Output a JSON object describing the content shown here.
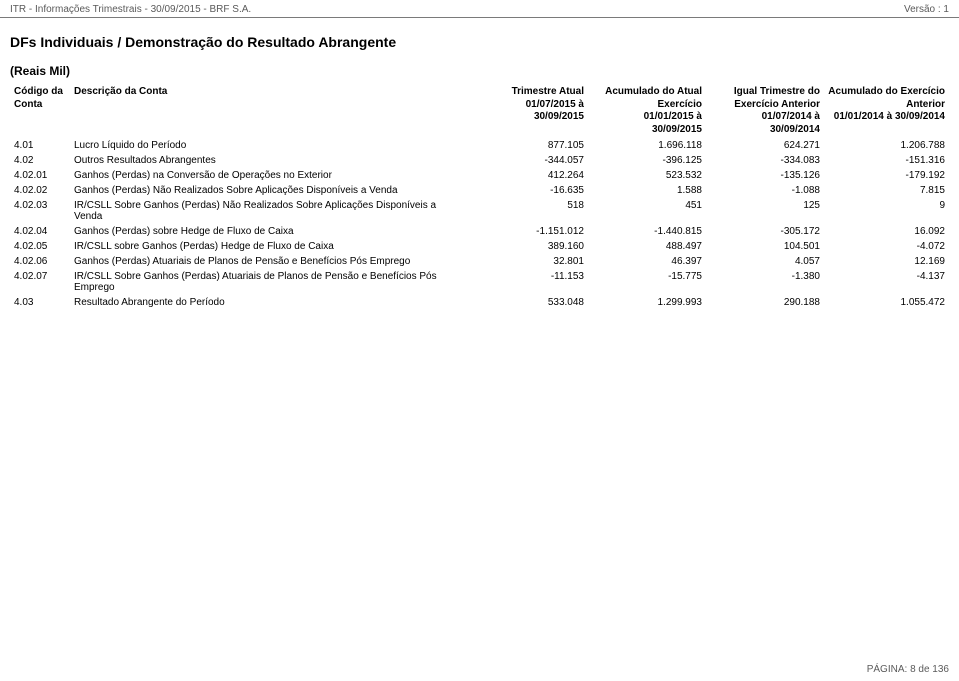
{
  "header": {
    "left": "ITR - Informações Trimestrais - 30/09/2015 - BRF S.A.",
    "right": "Versão : 1"
  },
  "title": "DFs Individuais / Demonstração do Resultado Abrangente",
  "subtitle": "(Reais Mil)",
  "columns": {
    "code": {
      "l1": "Código da",
      "l2": "Conta"
    },
    "desc": {
      "l1": "Descrição da Conta"
    },
    "c1": {
      "l1": "Trimestre Atual",
      "l2": "01/07/2015 à 30/09/2015"
    },
    "c2": {
      "l1": "Acumulado do Atual",
      "l2": "Exercício",
      "l3": "01/01/2015 à 30/09/2015"
    },
    "c3": {
      "l1": "Igual Trimestre do",
      "l2": "Exercício Anterior",
      "l3": "01/07/2014 à 30/09/2014"
    },
    "c4": {
      "l1": "Acumulado do Exercício",
      "l2": "Anterior",
      "l3": "01/01/2014 à 30/09/2014"
    }
  },
  "rows": [
    {
      "code": "4.01",
      "desc": "Lucro Líquido do Período",
      "v1": "877.105",
      "v2": "1.696.118",
      "v3": "624.271",
      "v4": "1.206.788"
    },
    {
      "code": "4.02",
      "desc": "Outros Resultados Abrangentes",
      "v1": "-344.057",
      "v2": "-396.125",
      "v3": "-334.083",
      "v4": "-151.316"
    },
    {
      "code": "4.02.01",
      "desc": "Ganhos (Perdas) na Conversão de Operações no Exterior",
      "v1": "412.264",
      "v2": "523.532",
      "v3": "-135.126",
      "v4": "-179.192"
    },
    {
      "code": "4.02.02",
      "desc": "Ganhos (Perdas) Não Realizados Sobre Aplicações Disponíveis a Venda",
      "v1": "-16.635",
      "v2": "1.588",
      "v3": "-1.088",
      "v4": "7.815"
    },
    {
      "code": "4.02.03",
      "desc": "IR/CSLL Sobre Ganhos (Perdas) Não Realizados Sobre Aplicações Disponíveis a Venda",
      "v1": "518",
      "v2": "451",
      "v3": "125",
      "v4": "9"
    },
    {
      "code": "4.02.04",
      "desc": "Ganhos (Perdas) sobre Hedge de Fluxo de Caixa",
      "v1": "-1.151.012",
      "v2": "-1.440.815",
      "v3": "-305.172",
      "v4": "16.092"
    },
    {
      "code": "4.02.05",
      "desc": "IR/CSLL sobre Ganhos (Perdas) Hedge de Fluxo de Caixa",
      "v1": "389.160",
      "v2": "488.497",
      "v3": "104.501",
      "v4": "-4.072"
    },
    {
      "code": "4.02.06",
      "desc": "Ganhos (Perdas) Atuariais de Planos de Pensão e Benefícios Pós Emprego",
      "v1": "32.801",
      "v2": "46.397",
      "v3": "4.057",
      "v4": "12.169"
    },
    {
      "code": "4.02.07",
      "desc": "IR/CSLL Sobre Ganhos (Perdas) Atuariais de Planos de Pensão e Benefícios Pós Emprego",
      "v1": "-11.153",
      "v2": "-15.775",
      "v3": "-1.380",
      "v4": "-4.137"
    },
    {
      "code": "4.03",
      "desc": "Resultado Abrangente do Período",
      "v1": "533.048",
      "v2": "1.299.993",
      "v3": "290.188",
      "v4": "1.055.472"
    }
  ],
  "footer": "PÁGINA: 8 de 136"
}
